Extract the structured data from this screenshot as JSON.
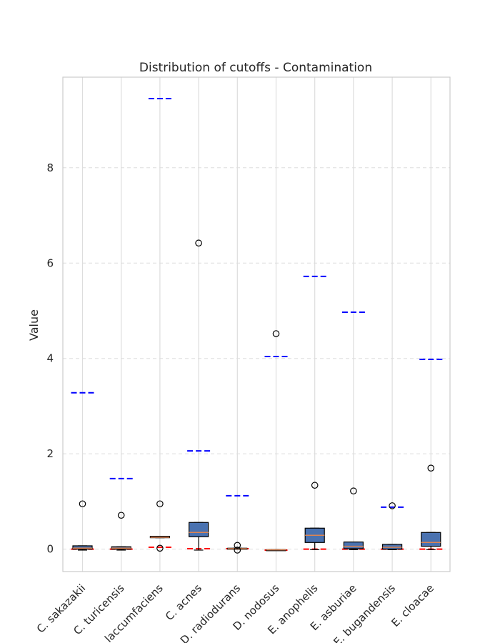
{
  "chart_data": {
    "type": "boxplot",
    "title": "Distribution of cutoffs - Contamination",
    "xlabel": "",
    "ylabel": "Value",
    "ylim": [
      -0.47,
      9.9
    ],
    "yticks": [
      0,
      2,
      4,
      6,
      8
    ],
    "grid": "on (y dashed, x solid)",
    "colors": {
      "box": "#4a72b0",
      "median": "#dd8452",
      "upper_line": "#0000ff",
      "lower_line": "#ff0000",
      "grid": "#dddddd"
    },
    "categories": [
      "C. sakazakii",
      "C. turicensis",
      "C. laccumfaciens",
      "C. acnes",
      "D. radiodurans",
      "D. nodosus",
      "E. anophelis",
      "E. asburiae",
      "E. bugandensis",
      "E. cloacae"
    ],
    "boxes": [
      {
        "q1": 0.0,
        "median": 0.02,
        "q3": 0.07,
        "whisker_low": -0.02,
        "whisker_high": 0.07,
        "outliers": [
          0.95
        ]
      },
      {
        "q1": 0.0,
        "median": 0.02,
        "q3": 0.05,
        "whisker_low": -0.02,
        "whisker_high": 0.05,
        "outliers": [
          0.71
        ]
      },
      {
        "q1": 0.24,
        "median": 0.25,
        "q3": 0.27,
        "whisker_low": 0.24,
        "whisker_high": 0.27,
        "outliers": [
          0.95,
          0.02
        ]
      },
      {
        "q1": 0.26,
        "median": 0.35,
        "q3": 0.56,
        "whisker_low": -0.02,
        "whisker_high": 0.56,
        "outliers": [
          6.42
        ]
      },
      {
        "q1": 0.0,
        "median": 0.01,
        "q3": 0.02,
        "whisker_low": 0.0,
        "whisker_high": 0.02,
        "outliers": [
          0.08,
          -0.02
        ]
      },
      {
        "q1": -0.02,
        "median": -0.015,
        "q3": -0.01,
        "whisker_low": -0.02,
        "whisker_high": -0.01,
        "outliers": [
          4.52
        ]
      },
      {
        "q1": 0.14,
        "median": 0.29,
        "q3": 0.44,
        "whisker_low": -0.01,
        "whisker_high": 0.44,
        "outliers": [
          1.34
        ]
      },
      {
        "q1": 0.01,
        "median": 0.06,
        "q3": 0.15,
        "whisker_low": -0.01,
        "whisker_high": 0.15,
        "outliers": [
          1.22
        ]
      },
      {
        "q1": 0.0,
        "median": 0.04,
        "q3": 0.1,
        "whisker_low": -0.01,
        "whisker_high": 0.1,
        "outliers": [
          0.91
        ]
      },
      {
        "q1": 0.06,
        "median": 0.14,
        "q3": 0.35,
        "whisker_low": -0.01,
        "whisker_high": 0.35,
        "outliers": [
          1.7
        ]
      }
    ],
    "upper_cutoffs": [
      3.28,
      1.48,
      9.45,
      2.06,
      1.12,
      4.04,
      5.72,
      4.97,
      0.88,
      3.98
    ],
    "lower_cutoffs": [
      0.0,
      0.0,
      0.04,
      0.01,
      0.01,
      -0.02,
      0.0,
      0.0,
      0.0,
      0.0
    ]
  }
}
